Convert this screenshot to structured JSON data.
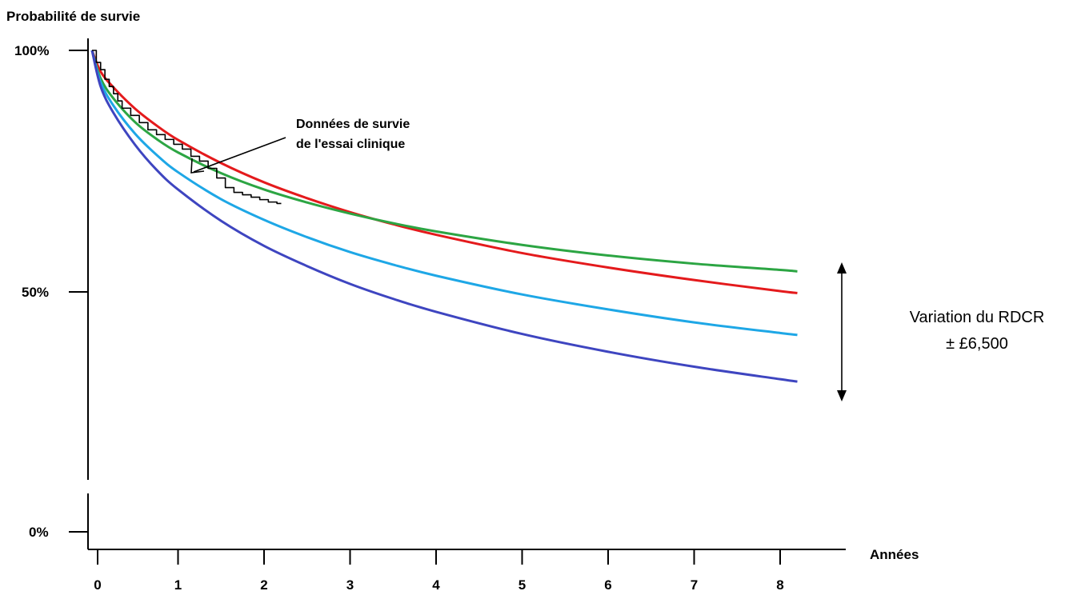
{
  "chart_data": {
    "type": "line",
    "ylabel": "Probabilité de survie",
    "xlabel": "Années",
    "x_ticks": [
      "0",
      "1",
      "2",
      "3",
      "4",
      "5",
      "6",
      "7",
      "8"
    ],
    "y_ticks": [
      "100%",
      "50%",
      "0%"
    ],
    "xlim": [
      0,
      8.2
    ],
    "ylim": [
      0,
      100
    ],
    "grid": false,
    "series": [
      {
        "color": "#e41a1c",
        "x": [
          0,
          0.1,
          0.25,
          0.5,
          0.75,
          1,
          1.5,
          2,
          2.5,
          3,
          3.5,
          4,
          5,
          6,
          7,
          8,
          8.2
        ],
        "y": [
          100,
          95.6,
          92.3,
          87.9,
          84.4,
          81.4,
          76.6,
          72.6,
          69.3,
          66.4,
          63.9,
          61.7,
          57.9,
          54.9,
          52.3,
          50.0,
          49.6
        ]
      },
      {
        "color": "#2ca543",
        "x": [
          0,
          0.1,
          0.25,
          0.5,
          0.75,
          1,
          1.5,
          2,
          2.5,
          3,
          3.5,
          4,
          5,
          6,
          7,
          8,
          8.2
        ],
        "y": [
          100,
          94.2,
          90.0,
          85.1,
          81.6,
          78.8,
          74.5,
          71.1,
          68.4,
          66.1,
          64.1,
          62.4,
          59.6,
          57.4,
          55.7,
          54.4,
          54.1
        ]
      },
      {
        "color": "#1ea7e6",
        "x": [
          0,
          0.1,
          0.25,
          0.5,
          0.75,
          1,
          1.5,
          2,
          2.5,
          3,
          3.5,
          4,
          5,
          6,
          7,
          8,
          8.2
        ],
        "y": [
          100,
          93.4,
          88.5,
          82.7,
          78.3,
          74.7,
          69.1,
          64.8,
          61.2,
          58.1,
          55.5,
          53.2,
          49.3,
          46.2,
          43.5,
          41.3,
          40.9
        ]
      },
      {
        "color": "#3e45c0",
        "x": [
          0,
          0.1,
          0.25,
          0.5,
          0.75,
          1,
          1.5,
          2,
          2.5,
          3,
          3.5,
          4,
          5,
          6,
          7,
          8,
          8.2
        ],
        "y": [
          100,
          92.5,
          87.0,
          80.4,
          75.2,
          71.1,
          64.6,
          59.4,
          55.2,
          51.5,
          48.4,
          45.7,
          41.1,
          37.4,
          34.3,
          31.7,
          31.2
        ]
      },
      {
        "color": "#000000",
        "step": true,
        "x": [
          0,
          0.05,
          0.1,
          0.15,
          0.2,
          0.25,
          0.3,
          0.35,
          0.45,
          0.55,
          0.65,
          0.75,
          0.85,
          0.95,
          1.05,
          1.15,
          1.25,
          1.35,
          1.45,
          1.55,
          1.65,
          1.75,
          1.85,
          1.95,
          2.05,
          2.15,
          2.2
        ],
        "y": [
          100,
          97.5,
          96,
          94,
          92.5,
          91,
          89.5,
          88,
          86.5,
          85,
          83.5,
          82.5,
          81.5,
          80.5,
          79.5,
          78,
          77,
          75.5,
          73.5,
          71.5,
          70.5,
          70,
          69.5,
          69,
          68.5,
          68.2,
          68.2
        ]
      }
    ],
    "annotations": [
      {
        "text_lines": [
          "Données de survie",
          "de l'essai clinique"
        ],
        "target_x": 1.15,
        "target_y": 77
      },
      {
        "text_lines": [
          "Variation du RDCR",
          "± £6,500"
        ],
        "range_y": [
          29,
          56
        ]
      }
    ]
  }
}
